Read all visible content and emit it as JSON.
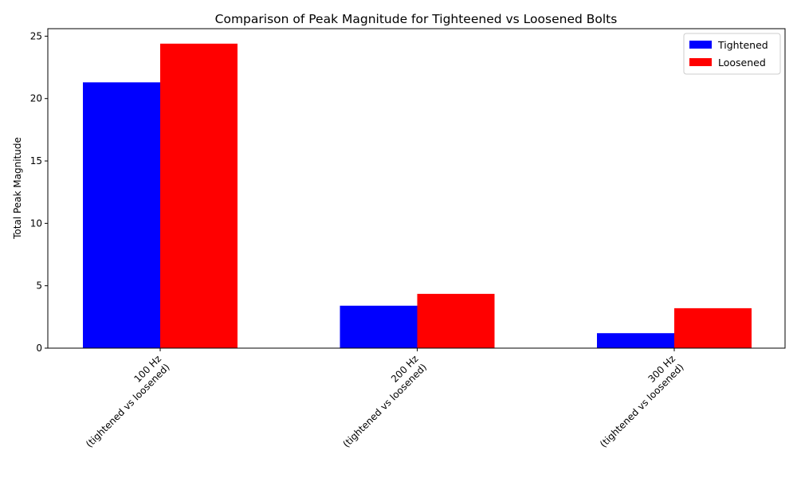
{
  "chart_data": {
    "type": "bar",
    "title": "Comparison of Peak Magnitude for Tighteened vs Loosened Bolts",
    "xlabel": "",
    "ylabel": "Total Peak Magnitude",
    "categories": [
      [
        "100 Hz",
        "(tightened vs loosened)"
      ],
      [
        "200 Hz",
        "(tightened vs loosened)"
      ],
      [
        "300 Hz",
        "(tightened vs loosened)"
      ]
    ],
    "series": [
      {
        "name": "Tightened",
        "color": "#0000ff",
        "values": [
          21.3,
          3.4,
          1.2
        ]
      },
      {
        "name": "Loosened",
        "color": "#ff0000",
        "values": [
          24.4,
          4.35,
          3.2
        ]
      }
    ],
    "ylim": [
      0,
      25.6
    ],
    "yticks": [
      0,
      5,
      10,
      15,
      20,
      25
    ],
    "grid": false,
    "legend_position": "top-right"
  }
}
